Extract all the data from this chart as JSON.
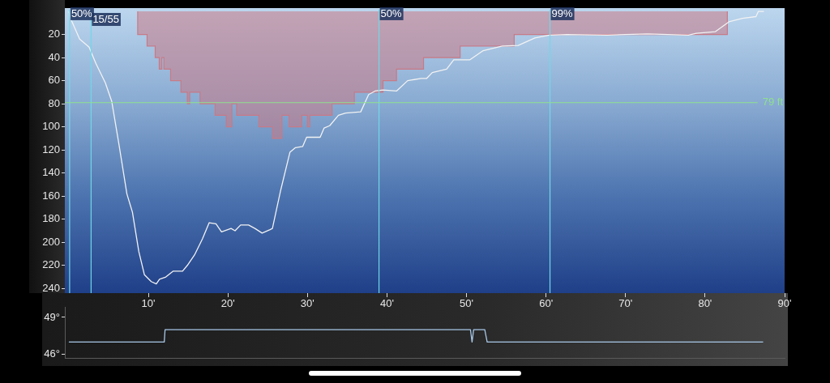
{
  "chart_data": [
    {
      "type": "line",
      "xlim": [
        -0.5,
        90
      ],
      "ylim": [
        244,
        -3
      ],
      "xticks": [
        {
          "value": 10,
          "label": "10'"
        },
        {
          "value": 20,
          "label": "20'"
        },
        {
          "value": 30,
          "label": "30'"
        },
        {
          "value": 40,
          "label": "40'"
        },
        {
          "value": 50,
          "label": "50'"
        },
        {
          "value": 60,
          "label": "60'"
        },
        {
          "value": 70,
          "label": "70'"
        },
        {
          "value": 80,
          "label": "80'"
        },
        {
          "value": 90,
          "label": "90'"
        }
      ],
      "yticks": [
        20,
        40,
        60,
        80,
        100,
        120,
        140,
        160,
        180,
        200,
        220,
        240
      ],
      "series": [
        {
          "type": "area",
          "color": "#c87a86",
          "x": [
            8.66,
            8.66,
            9.84,
            9.84,
            10.86,
            10.86,
            11.37,
            11.37,
            11.7,
            11.7,
            11.95,
            11.95,
            12.8,
            12.8,
            14.1,
            14.1,
            14.9,
            14.9,
            15.2,
            15.2,
            16.5,
            16.5,
            18.4,
            18.4,
            19.8,
            19.8,
            20.5,
            20.5,
            21.1,
            21.1,
            23.9,
            23.9,
            25.6,
            25.6,
            26.8,
            26.8,
            27.7,
            27.7,
            29.3,
            29.3,
            30.0,
            30.0,
            30.3,
            30.3,
            33.1,
            33.1,
            35.9,
            35.9,
            39.5,
            39.5,
            41.2,
            41.2,
            44.6,
            44.6,
            49.2,
            49.2,
            56.0,
            56.0,
            82.8,
            82.8
          ],
          "values": [
            0,
            20,
            20,
            30,
            30,
            40,
            40,
            50,
            50,
            40,
            40,
            50,
            50,
            60,
            60,
            70,
            70,
            80,
            80,
            70,
            70,
            80,
            80,
            90,
            90,
            100,
            100,
            80,
            80,
            90,
            90,
            100,
            100,
            110,
            110,
            90,
            90,
            100,
            100,
            90,
            90,
            100,
            100,
            90,
            90,
            80,
            80,
            70,
            70,
            60,
            60,
            50,
            50,
            40,
            40,
            30,
            30,
            20,
            20,
            0
          ]
        },
        {
          "color": "#f2f2f2",
          "x": [
            0.0,
            0.34,
            1.36,
            1.87,
            2.55,
            3.4,
            4.6,
            5.4,
            6.3,
            7.3,
            8.0,
            8.8,
            9.5,
            10.36,
            11.0,
            11.4,
            12.2,
            13.1,
            14.3,
            14.9,
            15.8,
            16.8,
            17.65,
            18.5,
            19.2,
            20.4,
            20.9,
            21.6,
            22.6,
            23.4,
            24.3,
            25.3,
            25.6,
            26.6,
            27.8,
            28.5,
            29.4,
            29.9,
            31.6,
            32.1,
            32.8,
            33.9,
            34.8,
            36.7,
            37.7,
            38.5,
            39.5,
            41.2,
            42.6,
            44.3,
            45.0,
            45.7,
            47.5,
            48.4,
            50.4,
            52.1,
            54.5,
            56.5,
            58.6,
            60.4,
            62.6,
            67.7,
            72.8,
            77.9,
            78.9,
            81.3,
            83.0,
            84.7,
            86.4,
            86.7,
            87.4
          ],
          "values": [
            0,
            8,
            24,
            27,
            31,
            45,
            62,
            78,
            115,
            158,
            174,
            208,
            228,
            234,
            236,
            232,
            230,
            225,
            225,
            220,
            211,
            197,
            183,
            184,
            191,
            188,
            190,
            185,
            185,
            188,
            192,
            189,
            188,
            156,
            122,
            118,
            117,
            109,
            109,
            101,
            99,
            90,
            88,
            87,
            72,
            69,
            68,
            69,
            60,
            58,
            58,
            53,
            50,
            42,
            42,
            34,
            30,
            29.5,
            23,
            20.5,
            20,
            20.5,
            19.5,
            20.5,
            19,
            17.5,
            9,
            6,
            4.5,
            0,
            0
          ]
        }
      ],
      "ref_lines": [
        {
          "axis": "x",
          "value": 0.1,
          "color": "#70d8e8"
        },
        {
          "axis": "x",
          "value": 2.8,
          "color": "#70d8e8"
        },
        {
          "axis": "x",
          "value": 39.0,
          "color": "#70d8e8"
        },
        {
          "axis": "x",
          "value": 60.5,
          "color": "#70d8e8"
        },
        {
          "axis": "y",
          "value": 79,
          "label": "79 ft",
          "color": "#8fe08f"
        }
      ],
      "annotations": [
        {
          "text": "50%",
          "x": 0.1,
          "y": 2
        },
        {
          "text": "15/55",
          "x": 2.8,
          "y": 7
        },
        {
          "text": "50%",
          "x": 39.0,
          "y": 2
        },
        {
          "text": "99%",
          "x": 60.5,
          "y": 2
        }
      ]
    },
    {
      "type": "line",
      "xlim": [
        -0.5,
        90
      ],
      "ylim": [
        45.7,
        49.8
      ],
      "tick_labels": "y",
      "yticks": [
        {
          "value": 46,
          "label": "46°"
        },
        {
          "value": 49,
          "label": "49°"
        }
      ],
      "series": [
        {
          "color": "#a8c8e8",
          "x": [
            0,
            12.0,
            12.1,
            50.5,
            50.7,
            50.9,
            52.3,
            52.6,
            87.3
          ],
          "values": [
            47,
            47,
            48,
            48,
            47,
            48,
            48,
            47,
            47
          ]
        }
      ]
    }
  ]
}
